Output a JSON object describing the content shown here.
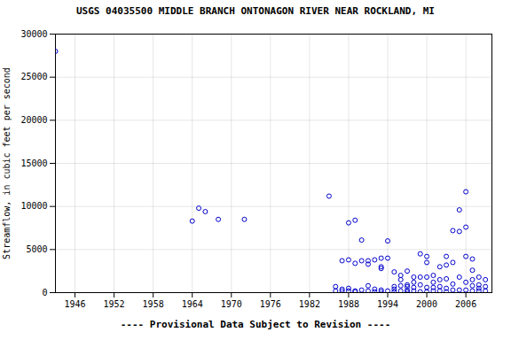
{
  "chart_data": {
    "type": "scatter",
    "title": "USGS 04035500 MIDDLE BRANCH ONTONAGON RIVER NEAR ROCKLAND, MI",
    "subtitle": "---- Provisional Data Subject to Revision ----",
    "ylabel": "Streamflow, in cubic feet per second",
    "color": "#0000cc",
    "grid": true,
    "xlim": [
      1943,
      2010
    ],
    "ylim": [
      0,
      30000
    ],
    "xticks": [
      1946,
      1952,
      1958,
      1964,
      1970,
      1976,
      1982,
      1988,
      1994,
      2000,
      2006
    ],
    "yticks": [
      0,
      5000,
      10000,
      15000,
      20000,
      25000,
      30000
    ],
    "x": [
      1943,
      1964,
      1965,
      1966,
      1968,
      1972,
      1985,
      1986,
      1986,
      1987,
      1987,
      1987,
      1988,
      1988,
      1988,
      1988,
      1989,
      1989,
      1989,
      1989,
      1990,
      1990,
      1990,
      1991,
      1991,
      1991,
      1991,
      1992,
      1992,
      1992,
      1993,
      1993,
      1993,
      1993,
      1993,
      1994,
      1994,
      1994,
      1995,
      1995,
      1995,
      1995,
      1996,
      1996,
      1996,
      1996,
      1997,
      1997,
      1997,
      1997,
      1997,
      1998,
      1998,
      1998,
      1998,
      1999,
      1999,
      1999,
      1999,
      2000,
      2000,
      2000,
      2000,
      2000,
      2001,
      2001,
      2001,
      2001,
      2002,
      2002,
      2002,
      2002,
      2003,
      2003,
      2003,
      2003,
      2003,
      2004,
      2004,
      2004,
      2004,
      2005,
      2005,
      2005,
      2005,
      2006,
      2006,
      2006,
      2006,
      2006,
      2007,
      2007,
      2007,
      2007,
      2007,
      2008,
      2008,
      2008,
      2008,
      2009,
      2009,
      2009
    ],
    "values": [
      28000,
      8300,
      9800,
      9400,
      8500,
      8500,
      11200,
      700,
      200,
      400,
      3700,
      200,
      8100,
      3800,
      500,
      200,
      3400,
      8400,
      200,
      100,
      6100,
      3700,
      300,
      3700,
      3300,
      800,
      200,
      3800,
      400,
      100,
      4000,
      3000,
      2800,
      300,
      100,
      4000,
      6000,
      200,
      2400,
      700,
      400,
      100,
      2000,
      1500,
      800,
      200,
      2500,
      900,
      700,
      300,
      100,
      1800,
      1200,
      600,
      200,
      4500,
      1800,
      900,
      100,
      4200,
      3500,
      1800,
      600,
      100,
      2000,
      1200,
      600,
      200,
      3000,
      1500,
      700,
      200,
      4200,
      3200,
      1600,
      500,
      100,
      7200,
      3500,
      1000,
      300,
      7100,
      9600,
      1800,
      300,
      11700,
      7600,
      4200,
      1200,
      300,
      3900,
      2600,
      1500,
      800,
      200,
      1800,
      900,
      500,
      200,
      1500,
      700,
      200
    ]
  }
}
